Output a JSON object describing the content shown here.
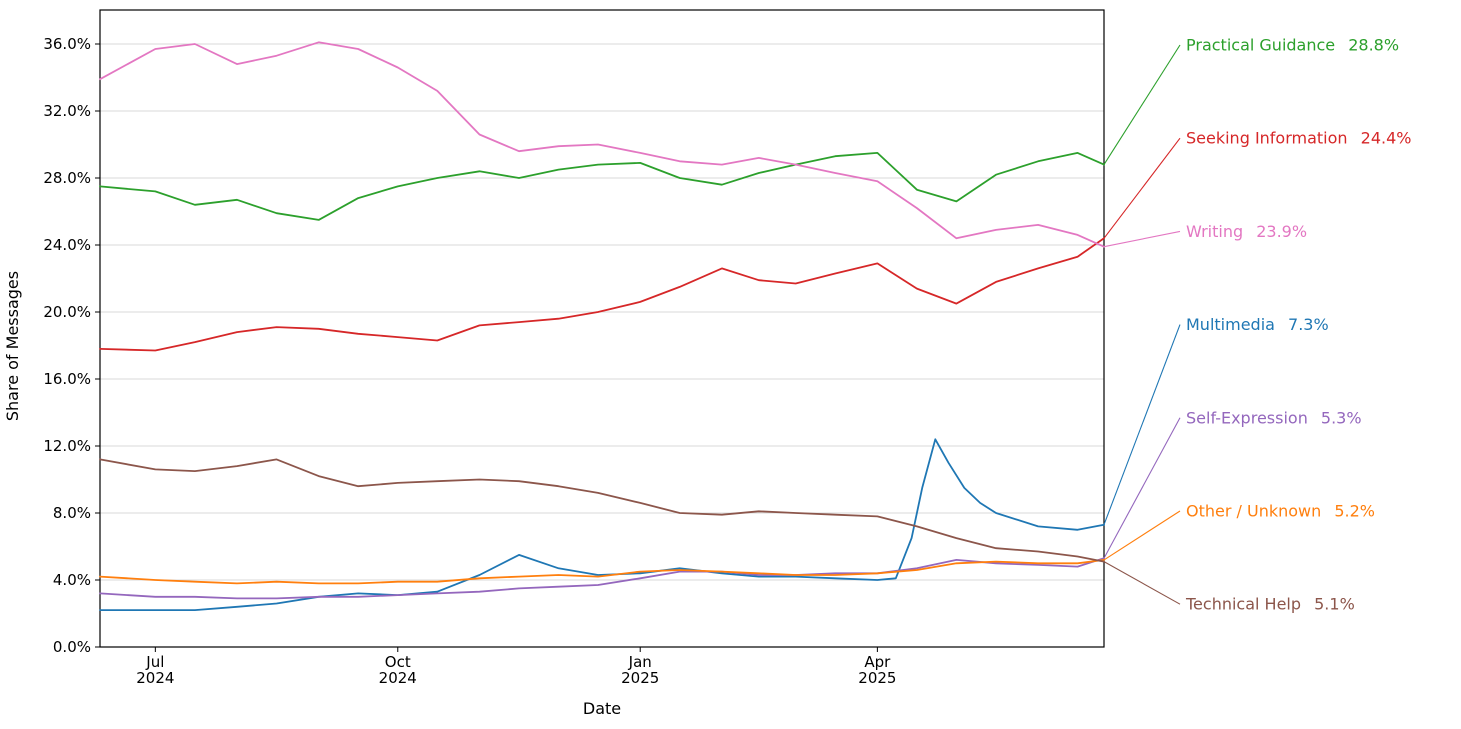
{
  "chart_data": {
    "type": "line",
    "title": "",
    "xlabel": "Date",
    "ylabel": "Share of Messages",
    "grid": true,
    "legend_position": "right",
    "ylim": [
      0,
      38
    ],
    "y_ticks": [
      0,
      4,
      8,
      12,
      16,
      20,
      24,
      28,
      32,
      36
    ],
    "y_tick_labels": [
      "0.0%",
      "4.0%",
      "8.0%",
      "12.0%",
      "16.0%",
      "20.0%",
      "24.0%",
      "28.0%",
      "32.0%",
      "36.0%"
    ],
    "x_ticks": [
      {
        "date": "2024-07-01",
        "label_line1": "Jul",
        "label_line2": "2024"
      },
      {
        "date": "2024-10-01",
        "label_line1": "Oct",
        "label_line2": "2024"
      },
      {
        "date": "2025-01-01",
        "label_line1": "Jan",
        "label_line2": "2025"
      },
      {
        "date": "2025-04-01",
        "label_line1": "Apr",
        "label_line2": "2025"
      }
    ],
    "x_dates": [
      "2024-06-10",
      "2024-07-01",
      "2024-07-16",
      "2024-08-01",
      "2024-08-16",
      "2024-09-01",
      "2024-09-16",
      "2024-10-01",
      "2024-10-16",
      "2024-11-01",
      "2024-11-16",
      "2024-12-01",
      "2024-12-16",
      "2025-01-01",
      "2025-01-16",
      "2025-02-01",
      "2025-02-15",
      "2025-03-01",
      "2025-03-16",
      "2025-04-01",
      "2025-04-16",
      "2025-05-01",
      "2025-05-16",
      "2025-06-01",
      "2025-06-16",
      "2025-06-26"
    ],
    "series": [
      {
        "name": "Practical Guidance",
        "final_label": "28.8%",
        "color": "#2ca02c",
        "values": [
          27.5,
          27.2,
          26.4,
          26.7,
          25.9,
          25.5,
          26.8,
          27.5,
          28.0,
          28.4,
          28.0,
          28.5,
          28.8,
          28.9,
          28.0,
          27.6,
          28.3,
          28.8,
          29.3,
          29.5,
          27.3,
          26.6,
          28.2,
          29.0,
          29.5,
          28.8
        ]
      },
      {
        "name": "Seeking Information",
        "final_label": "24.4%",
        "color": "#d62728",
        "values": [
          17.8,
          17.7,
          18.2,
          18.8,
          19.1,
          19.0,
          18.7,
          18.5,
          18.3,
          19.2,
          19.4,
          19.6,
          20.0,
          20.6,
          21.5,
          22.6,
          21.9,
          21.7,
          22.3,
          22.9,
          21.4,
          20.5,
          21.8,
          22.6,
          23.3,
          24.4
        ]
      },
      {
        "name": "Writing",
        "final_label": "23.9%",
        "color": "#e377c2",
        "values": [
          33.9,
          35.7,
          36.0,
          34.8,
          35.3,
          36.1,
          35.7,
          34.6,
          33.2,
          30.6,
          29.6,
          29.9,
          30.0,
          29.5,
          29.0,
          28.8,
          29.2,
          28.8,
          28.3,
          27.8,
          26.2,
          24.4,
          24.9,
          25.2,
          24.6,
          23.9
        ]
      },
      {
        "name": "Multimedia",
        "final_label": "7.3%",
        "color": "#1f77b4",
        "x_dates": [
          "2024-06-10",
          "2024-07-01",
          "2024-07-16",
          "2024-08-01",
          "2024-08-16",
          "2024-09-01",
          "2024-09-16",
          "2024-10-01",
          "2024-10-16",
          "2024-11-01",
          "2024-11-16",
          "2024-12-01",
          "2024-12-16",
          "2025-01-01",
          "2025-01-16",
          "2025-02-01",
          "2025-02-15",
          "2025-03-01",
          "2025-03-16",
          "2025-04-01",
          "2025-04-08",
          "2025-04-14",
          "2025-04-18",
          "2025-04-23",
          "2025-04-28",
          "2025-05-04",
          "2025-05-10",
          "2025-05-16",
          "2025-06-01",
          "2025-06-16",
          "2025-06-26"
        ],
        "values": [
          2.2,
          2.2,
          2.2,
          2.4,
          2.6,
          3.0,
          3.2,
          3.1,
          3.3,
          4.3,
          5.5,
          4.7,
          4.3,
          4.4,
          4.7,
          4.4,
          4.2,
          4.2,
          4.1,
          4.0,
          4.1,
          6.5,
          9.5,
          12.4,
          11.0,
          9.5,
          8.6,
          8.0,
          7.2,
          7.0,
          7.3
        ]
      },
      {
        "name": "Self-Expression",
        "final_label": "5.3%",
        "color": "#9467bd",
        "values": [
          3.2,
          3.0,
          3.0,
          2.9,
          2.9,
          3.0,
          3.0,
          3.1,
          3.2,
          3.3,
          3.5,
          3.6,
          3.7,
          4.1,
          4.5,
          4.5,
          4.3,
          4.3,
          4.4,
          4.4,
          4.7,
          5.2,
          5.0,
          4.9,
          4.8,
          5.3
        ]
      },
      {
        "name": "Other / Unknown",
        "final_label": "5.2%",
        "color": "#ff7f0e",
        "values": [
          4.2,
          4.0,
          3.9,
          3.8,
          3.9,
          3.8,
          3.8,
          3.9,
          3.9,
          4.1,
          4.2,
          4.3,
          4.2,
          4.5,
          4.6,
          4.5,
          4.4,
          4.3,
          4.3,
          4.4,
          4.6,
          5.0,
          5.1,
          5.0,
          5.0,
          5.2
        ]
      },
      {
        "name": "Technical Help",
        "final_label": "5.1%",
        "color": "#8c564b",
        "values": [
          11.2,
          10.6,
          10.5,
          10.8,
          11.2,
          10.2,
          9.6,
          9.8,
          9.9,
          10.0,
          9.9,
          9.6,
          9.2,
          8.6,
          8.0,
          7.9,
          8.1,
          8.0,
          7.9,
          7.8,
          7.2,
          6.5,
          5.9,
          5.7,
          5.4,
          5.1
        ]
      }
    ]
  }
}
